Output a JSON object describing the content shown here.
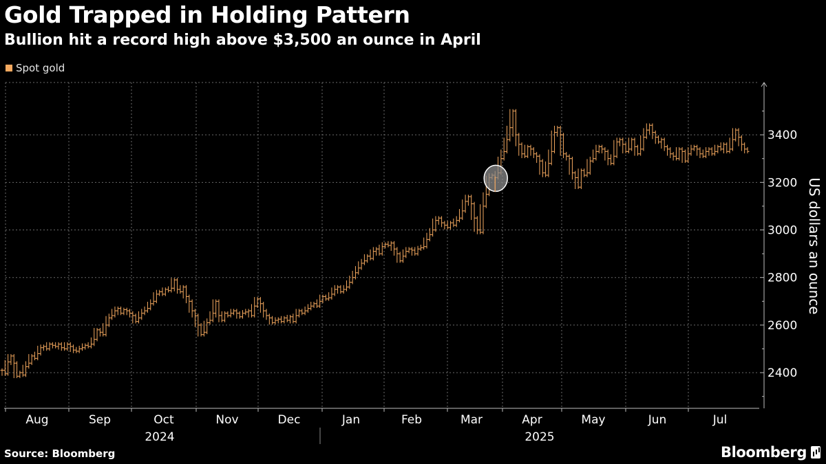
{
  "header": {
    "title": "Gold Trapped in Holding Pattern",
    "subtitle": "Bullion hit a record high above $3,500 an ounce in April"
  },
  "footer": {
    "source": "Source: Bloomberg",
    "brand": "Bloomberg"
  },
  "colors": {
    "background": "#000000",
    "series": "#f5a95f",
    "grid": "#6b6b6b",
    "text": "#ffffff",
    "highlight_circle_fill": "#8a8a8a"
  },
  "chart_data": {
    "type": "line",
    "style": "ohlc-bars",
    "legend": {
      "placement": "top-left",
      "entries": [
        "Spot gold"
      ]
    },
    "series": [
      {
        "name": "Spot gold",
        "values": [
          2410,
          2395,
          2445,
          2470,
          2440,
          2385,
          2400,
          2390,
          2425,
          2440,
          2470,
          2460,
          2480,
          2505,
          2510,
          2500,
          2520,
          2515,
          2510,
          2520,
          2505,
          2500,
          2520,
          2510,
          2495,
          2490,
          2500,
          2505,
          2515,
          2510,
          2520,
          2540,
          2580,
          2570,
          2560,
          2600,
          2630,
          2640,
          2660,
          2670,
          2650,
          2665,
          2660,
          2650,
          2640,
          2615,
          2630,
          2650,
          2660,
          2670,
          2690,
          2700,
          2730,
          2740,
          2730,
          2750,
          2745,
          2755,
          2790,
          2750,
          2740,
          2760,
          2720,
          2700,
          2660,
          2640,
          2600,
          2560,
          2570,
          2610,
          2620,
          2650,
          2700,
          2640,
          2620,
          2650,
          2640,
          2650,
          2660,
          2650,
          2635,
          2650,
          2655,
          2660,
          2640,
          2680,
          2710,
          2690,
          2660,
          2640,
          2630,
          2610,
          2620,
          2625,
          2615,
          2630,
          2620,
          2635,
          2615,
          2640,
          2660,
          2650,
          2660,
          2670,
          2680,
          2690,
          2680,
          2700,
          2720,
          2710,
          2715,
          2730,
          2750,
          2760,
          2740,
          2750,
          2760,
          2780,
          2800,
          2820,
          2840,
          2860,
          2870,
          2890,
          2880,
          2910,
          2920,
          2900,
          2930,
          2940,
          2935,
          2945,
          2920,
          2900,
          2870,
          2890,
          2910,
          2920,
          2915,
          2900,
          2920,
          2925,
          2930,
          2960,
          2980,
          3000,
          3040,
          3050,
          3030,
          3020,
          3010,
          3030,
          3020,
          3040,
          3050,
          3080,
          3120,
          3140,
          3110,
          3050,
          3000,
          2990,
          3100,
          3150,
          3220,
          3230,
          3220,
          3240,
          3300,
          3330,
          3380,
          3430,
          3500,
          3400,
          3360,
          3320,
          3310,
          3350,
          3340,
          3320,
          3310,
          3290,
          3240,
          3230,
          3280,
          3330,
          3410,
          3430,
          3400,
          3320,
          3310,
          3300,
          3240,
          3220,
          3180,
          3250,
          3230,
          3240,
          3290,
          3300,
          3330,
          3350,
          3340,
          3330,
          3300,
          3280,
          3310,
          3370,
          3380,
          3360,
          3330,
          3340,
          3380,
          3350,
          3320,
          3340,
          3390,
          3420,
          3440,
          3410,
          3390,
          3370,
          3380,
          3350,
          3340,
          3320,
          3310,
          3300,
          3340,
          3330,
          3290,
          3320,
          3340,
          3350,
          3340,
          3320,
          3310,
          3330,
          3340,
          3320,
          3330,
          3350,
          3340,
          3360,
          3330,
          3340,
          3380,
          3420,
          3390,
          3360,
          3340,
          3330
        ]
      }
    ],
    "x_axis": {
      "ticks": [
        "Aug",
        "Sep",
        "Oct",
        "Nov",
        "Dec",
        "Jan",
        "Feb",
        "Mar",
        "Apr",
        "May",
        "Jun",
        "Jul"
      ],
      "years": [
        "2024",
        "2025"
      ]
    },
    "y_axis": {
      "label": "US dollars an ounce",
      "ticks": [
        2400,
        2600,
        2800,
        3000,
        3200,
        3400
      ],
      "range": [
        2250,
        3620
      ],
      "position": "right"
    },
    "grid": true,
    "annotation": {
      "type": "circle",
      "index": 166
    }
  }
}
